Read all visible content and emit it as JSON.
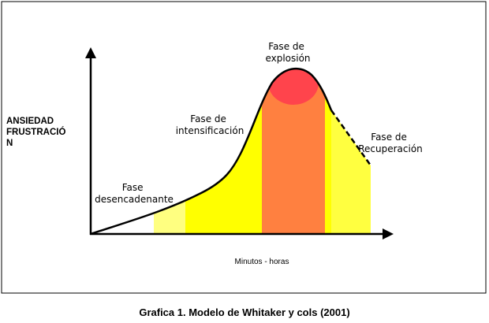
{
  "figure": {
    "y_axis_label": [
      "ANSIEDAD",
      "FRUSTRACIÓ",
      "N"
    ],
    "x_axis_label": "Minutos - horas",
    "phases": [
      {
        "label": [
          "Fase",
          "desencadenante"
        ]
      },
      {
        "label": [
          "Fase de",
          "intensificación"
        ]
      },
      {
        "label": [
          "Fase de",
          "explosión"
        ]
      },
      {
        "label": [
          "Fase de",
          "Recuperación"
        ]
      }
    ],
    "caption": "Grafica 1. Modelo de Whitaker y cols (2001)"
  }
}
